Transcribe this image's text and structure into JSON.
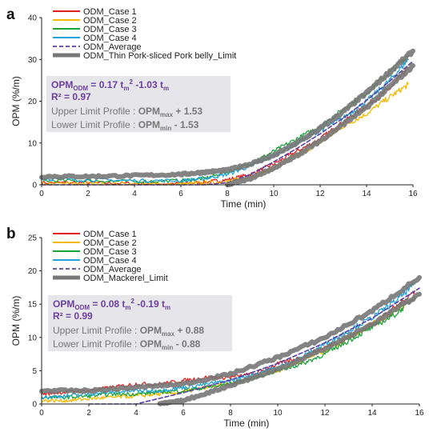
{
  "chart_data": [
    {
      "type": "line",
      "panel_label": "a",
      "xlabel": "Time (min)",
      "ylabel": "OPM (%/m)",
      "xlim": [
        0,
        16
      ],
      "ylim": [
        0,
        40
      ],
      "xticks": [
        0,
        2,
        4,
        6,
        8,
        10,
        12,
        14,
        16
      ],
      "yticks": [
        0,
        10,
        20,
        30,
        40
      ],
      "grid": false,
      "legend_position": "top-left",
      "series": [
        {
          "name": "ODM_Case 1",
          "color": "#e0201c",
          "style": "solid",
          "x": [
            0,
            2,
            4,
            6,
            7,
            8,
            9,
            10,
            11,
            12,
            13,
            14,
            15,
            15.8
          ],
          "y": [
            0.5,
            0.5,
            0.3,
            0.3,
            0.6,
            1.2,
            2.5,
            5,
            8,
            11,
            15,
            19,
            23,
            28
          ]
        },
        {
          "name": "ODM_Case 2",
          "color": "#f5b800",
          "style": "solid",
          "x": [
            0,
            2,
            4,
            6,
            7,
            8,
            9,
            10,
            11,
            12,
            13,
            14,
            15,
            15.8
          ],
          "y": [
            0.3,
            0.3,
            0.2,
            0.2,
            0.4,
            0.8,
            1.8,
            4,
            7,
            10,
            14,
            17,
            21,
            24
          ]
        },
        {
          "name": "ODM_Case 3",
          "color": "#1aa33a",
          "style": "solid",
          "x": [
            0,
            2,
            4,
            6,
            7,
            8,
            9,
            10,
            11,
            12,
            13,
            14,
            15,
            15.8
          ],
          "y": [
            1,
            1,
            0.8,
            1,
            1.5,
            3,
            5,
            8,
            11,
            14,
            18,
            22,
            27,
            31
          ]
        },
        {
          "name": "ODM_Case 4",
          "color": "#1fa3d8",
          "style": "solid",
          "x": [
            0,
            2,
            4,
            6,
            7,
            8,
            9,
            10,
            11,
            12,
            13,
            14,
            15,
            15.8
          ],
          "y": [
            1.5,
            1.2,
            1,
            1,
            1.5,
            2.5,
            4.5,
            7,
            10,
            13,
            16,
            20,
            25,
            30
          ]
        },
        {
          "name": "ODM_Average",
          "color": "#5a3fa8",
          "style": "dashed",
          "x": [
            0,
            2,
            4,
            6,
            7,
            8,
            9,
            10,
            11,
            12,
            13,
            14,
            15,
            16
          ],
          "y": [
            0,
            0,
            0,
            0,
            0,
            0.5,
            2.5,
            5.5,
            8.7,
            12.2,
            16,
            20.2,
            24.8,
            29.6
          ]
        },
        {
          "name": "ODM_Thin Pork-sliced Pork belly_Limit",
          "color": "#777777",
          "style": "thick",
          "x": [
            0,
            2,
            4,
            6,
            7,
            8,
            9,
            10,
            11,
            12,
            13,
            14,
            15,
            16
          ],
          "y": [
            2,
            2,
            2.2,
            2.5,
            3,
            3.5,
            5,
            7,
            10,
            13.5,
            17.5,
            22,
            27,
            32
          ]
        },
        {
          "name": "",
          "color": "#777777",
          "style": "thick",
          "x": [
            8,
            9,
            10,
            11,
            12,
            13,
            14,
            15,
            16
          ],
          "y": [
            0,
            1.5,
            4,
            7,
            10.5,
            14.5,
            18.5,
            23.5,
            28.5
          ]
        }
      ],
      "equation_lines": [
        {
          "base": "OPM",
          "sub": "ODM",
          "text": " = 0.17 t",
          "sub2": "m",
          "sup": "2",
          "text2": " -1.03 t",
          "sub3": "m"
        },
        {
          "text": "R² = 0.97"
        }
      ],
      "limit_lines": [
        {
          "label": "Upper Limit Profile : ",
          "bold": "OPM",
          "sub": "max",
          "tail": " + 1.53"
        },
        {
          "label": "Lower Limit Profile : ",
          "bold": "OPM",
          "sub": "min",
          "tail": "  - 1.53"
        }
      ]
    },
    {
      "type": "line",
      "panel_label": "b",
      "xlabel": "Time (min)",
      "ylabel": "OPM (%/m)",
      "xlim": [
        0,
        16
      ],
      "ylim": [
        0,
        25
      ],
      "xticks": [
        0,
        2,
        4,
        6,
        8,
        10,
        12,
        14,
        16
      ],
      "yticks": [
        0,
        5,
        10,
        15,
        20,
        25
      ],
      "grid": false,
      "legend_position": "top-left",
      "series": [
        {
          "name": "ODM_Case 1",
          "color": "#e0201c",
          "style": "solid",
          "x": [
            0,
            1,
            2,
            3,
            4,
            5,
            6,
            7,
            8,
            9,
            10,
            11,
            12,
            13,
            14,
            15,
            15.8
          ],
          "y": [
            1.5,
            1.8,
            2,
            2.5,
            3,
            3,
            3.5,
            4,
            4,
            4.5,
            6,
            7,
            8.5,
            10,
            12,
            14.5,
            17
          ]
        },
        {
          "name": "ODM_Case 2",
          "color": "#f5b800",
          "style": "solid",
          "x": [
            0,
            1,
            2,
            3,
            4,
            5,
            6,
            7,
            8,
            9,
            10,
            11,
            12,
            13,
            14,
            15,
            15.8
          ],
          "y": [
            0.5,
            0.5,
            0.8,
            1,
            1.2,
            1.5,
            1.8,
            2.5,
            3,
            4,
            5,
            6.5,
            8,
            10,
            12,
            14,
            16
          ]
        },
        {
          "name": "ODM_Case 3",
          "color": "#1aa33a",
          "style": "solid",
          "x": [
            0,
            1,
            2,
            3,
            4,
            5,
            6,
            7,
            8,
            9,
            10,
            11,
            12,
            13,
            14,
            15,
            15.8
          ],
          "y": [
            1,
            1,
            1.2,
            1.5,
            1.5,
            1.8,
            2,
            2.5,
            3,
            4,
            5,
            6,
            7.5,
            9.5,
            11.5,
            13.5,
            16
          ]
        },
        {
          "name": "ODM_Case 4",
          "color": "#1fa3d8",
          "style": "solid",
          "x": [
            0,
            1,
            2,
            3,
            4,
            5,
            6,
            7,
            8,
            9,
            10,
            11,
            12,
            13,
            14,
            15,
            15.8
          ],
          "y": [
            1,
            1.2,
            1.5,
            1.8,
            2,
            2,
            2.5,
            3,
            3.5,
            4.5,
            5.5,
            7,
            9,
            11,
            13,
            15.5,
            18
          ]
        },
        {
          "name": "ODM_Average",
          "color": "#5a3fa8",
          "style": "dashed",
          "x": [
            2,
            4,
            6,
            8,
            10,
            12,
            14,
            16
          ],
          "y": [
            0,
            0,
            1.7,
            3.6,
            6.1,
            9.2,
            12.9,
            17.4
          ]
        },
        {
          "name": "ODM_Mackerel_Limit",
          "color": "#777777",
          "style": "thick",
          "x": [
            0,
            2,
            4,
            6,
            8,
            10,
            12,
            14,
            16
          ],
          "y": [
            2,
            2,
            2.5,
            3,
            4.5,
            7,
            10,
            14,
            19
          ]
        },
        {
          "name": "",
          "color": "#777777",
          "style": "thick",
          "x": [
            5,
            6,
            8,
            10,
            12,
            14,
            16
          ],
          "y": [
            0,
            0.5,
            2.8,
            5.2,
            8.3,
            12,
            16.5
          ]
        }
      ],
      "equation_lines": [
        {
          "base": "OPM",
          "sub": "ODM",
          "text": " = 0.08 t",
          "sub2": "m",
          "sup": "2",
          "text2": " -0.19 t",
          "sub3": "m"
        },
        {
          "text": "R² = 0.99"
        }
      ],
      "limit_lines": [
        {
          "label": "Upper Limit Profile : ",
          "bold": "OPM",
          "sub": "max",
          "tail": " + 0.88"
        },
        {
          "label": "Lower Limit Profile : ",
          "bold": "OPM",
          "sub": "min",
          "tail": "  - 0.88"
        }
      ]
    }
  ]
}
